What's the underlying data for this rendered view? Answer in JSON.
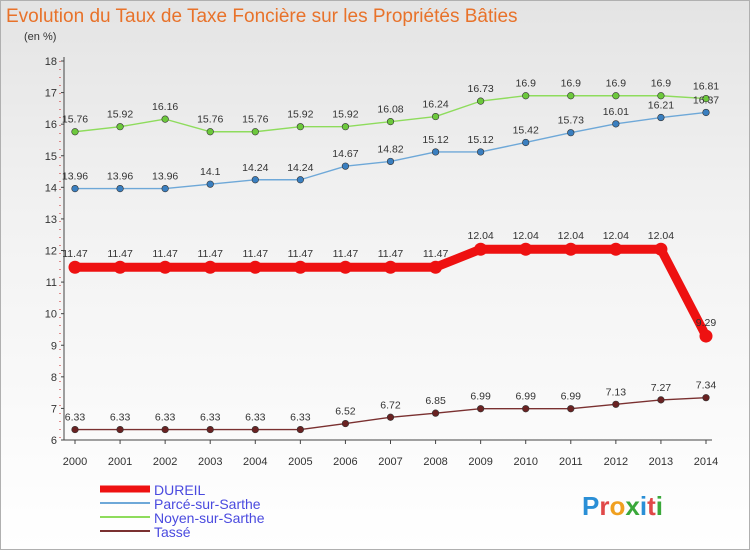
{
  "header": {
    "title": "Evolution du Taux de Taxe Foncière sur les Propriétés Bâties",
    "subtitle": "(en %)"
  },
  "brand": {
    "text": "Proxiti",
    "letter_colors": [
      "#2a8fd6",
      "#e04848",
      "#f0a020",
      "#3aa83a",
      "#2a8fd6",
      "#e04848",
      "#3aa83a"
    ]
  },
  "chart_data": {
    "type": "line",
    "title": "Evolution du Taux de Taxe Foncière sur les Propriétés Bâties",
    "subtitle": "(en %)",
    "x": [
      "2000",
      "2001",
      "2002",
      "2003",
      "2004",
      "2005",
      "2006",
      "2007",
      "2008",
      "2009",
      "2010",
      "2011",
      "2012",
      "2013",
      "2014"
    ],
    "ylim": [
      6,
      18
    ],
    "yticks": [
      "6",
      "7",
      "8",
      "9",
      "10",
      "11",
      "12",
      "13",
      "14",
      "15",
      "16",
      "17",
      "18"
    ],
    "grid": false,
    "legend_position": "bottom-left",
    "series": [
      {
        "name": "DUREIL",
        "color": "#ee1111",
        "marker": "#ee1111",
        "values": [
          11.47,
          11.47,
          11.47,
          11.47,
          11.47,
          11.47,
          11.47,
          11.47,
          11.47,
          12.04,
          12.04,
          12.04,
          12.04,
          12.04,
          9.29
        ],
        "labels": [
          "11.47",
          "11.47",
          "11.47",
          "11.47",
          "11.47",
          "11.47",
          "11.47",
          "11.47",
          "11.47",
          "12.04",
          "12.04",
          "12.04",
          "12.04",
          "12.04",
          "9.29"
        ]
      },
      {
        "name": "Parcé-sur-Sarthe",
        "color": "#6ea8d8",
        "marker": "#3a7fc0",
        "values": [
          13.96,
          13.96,
          13.96,
          14.1,
          14.24,
          14.24,
          14.67,
          14.82,
          15.12,
          15.12,
          15.42,
          15.73,
          16.01,
          16.21,
          16.37
        ],
        "labels": [
          "13.96",
          "13.96",
          "13.96",
          "14.1",
          "14.24",
          "14.24",
          "14.67",
          "14.82",
          "15.12",
          "15.12",
          "15.42",
          "15.73",
          "16.01",
          "16.21",
          "16.37"
        ]
      },
      {
        "name": "Noyen-sur-Sarthe",
        "color": "#8edc5c",
        "marker": "#6cc83c",
        "values": [
          15.76,
          15.92,
          16.16,
          15.76,
          15.76,
          15.92,
          15.92,
          16.08,
          16.24,
          16.73,
          16.9,
          16.9,
          16.9,
          16.9,
          16.81
        ],
        "labels": [
          "15.76",
          "15.92",
          "16.16",
          "15.76",
          "15.76",
          "15.92",
          "15.92",
          "16.08",
          "16.24",
          "16.73",
          "16.9",
          "16.9",
          "16.9",
          "16.9",
          "16.81"
        ]
      },
      {
        "name": "Tassé",
        "color": "#7a3030",
        "marker": "#6a2222",
        "values": [
          6.33,
          6.33,
          6.33,
          6.33,
          6.33,
          6.33,
          6.52,
          6.72,
          6.85,
          6.99,
          6.99,
          6.99,
          7.13,
          7.27,
          7.34
        ],
        "labels": [
          "6.33",
          "6.33",
          "6.33",
          "6.33",
          "6.33",
          "6.33",
          "6.52",
          "6.72",
          "6.85",
          "6.99",
          "6.99",
          "6.99",
          "7.13",
          "7.27",
          "7.34"
        ]
      }
    ]
  }
}
